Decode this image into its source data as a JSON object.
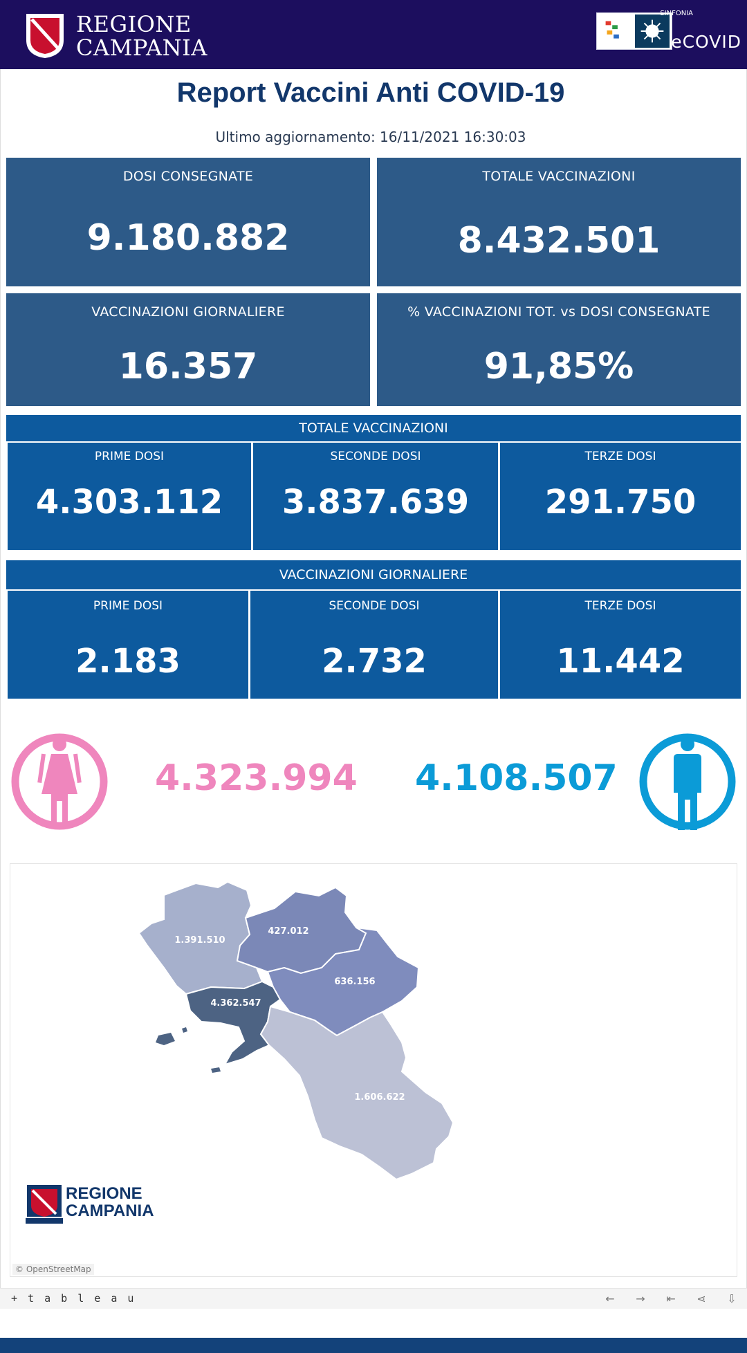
{
  "header": {
    "brand_line1": "REGIONE",
    "brand_line2": "CAMPANIA",
    "sinfonia": "SINFONIA",
    "ecovid": "eCOVID"
  },
  "title": "Report Vaccini Anti COVID-19",
  "updated": "Ultimo aggiornamento: 16/11/2021  16:30:03",
  "kpis": [
    {
      "label": "DOSI  CONSEGNATE",
      "value": "9.180.882"
    },
    {
      "label": "TOTALE VACCINAZIONI",
      "value": "8.432.501"
    },
    {
      "label": "VACCINAZIONI GIORNALIERE",
      "value": "16.357"
    },
    {
      "label": "% VACCINAZIONI TOT. vs DOSI CONSEGNATE",
      "value": "91,85%"
    }
  ],
  "totale": {
    "title": "TOTALE VACCINAZIONI",
    "cells": [
      {
        "label": "PRIME DOSI",
        "value": "4.303.112"
      },
      {
        "label": "SECONDE DOSI",
        "value": "3.837.639"
      },
      {
        "label": "TERZE DOSI",
        "value": "291.750"
      }
    ]
  },
  "giornaliere": {
    "title": "VACCINAZIONI GIORNALIERE",
    "cells": [
      {
        "label": "PRIME DOSI",
        "value": "2.183"
      },
      {
        "label": "SECONDE DOSI",
        "value": "2.732"
      },
      {
        "label": "TERZE DOSI",
        "value": "11.442"
      }
    ]
  },
  "gender": {
    "female_value": "4.323.994",
    "male_value": "4.108.507",
    "female_color": "#ef86bd",
    "male_color": "#0b9bd7"
  },
  "map": {
    "provinces": [
      {
        "value": "1.391.510",
        "color": "#a6b0cc"
      },
      {
        "value": "427.012",
        "color": "#7b88b7"
      },
      {
        "value": "636.156",
        "color": "#7f8cbd"
      },
      {
        "value": "4.362.547",
        "color": "#4d6383"
      },
      {
        "value": "1.606.622",
        "color": "#bcc1d5"
      }
    ],
    "attribution": "© OpenStreetMap",
    "logo_line1": "REGIONE",
    "logo_line2": "CAMPANIA"
  },
  "toolbar": {
    "logo": "+ t a b l e a u",
    "icons": [
      "undo-icon",
      "redo-icon",
      "revert-icon",
      "share-icon",
      "download-icon"
    ]
  }
}
